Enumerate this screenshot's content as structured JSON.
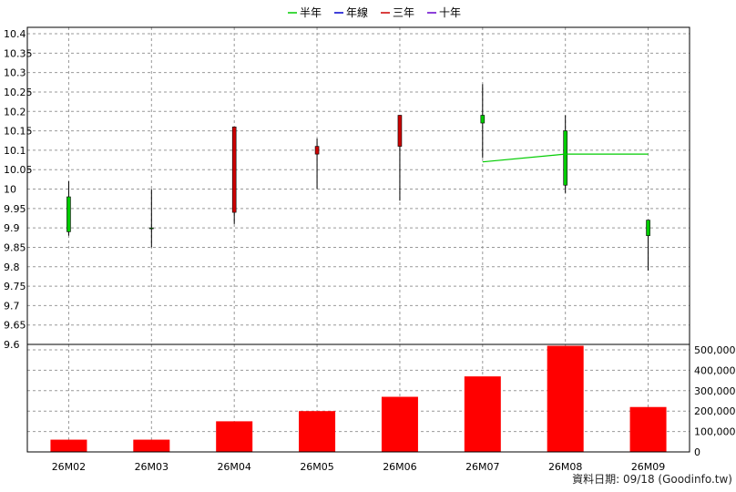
{
  "chart_data": [
    {
      "type": "candlestick",
      "legend": [
        {
          "label": "半年",
          "color": "#00cc00"
        },
        {
          "label": "年線",
          "color": "#0000cc"
        },
        {
          "label": "三年",
          "color": "#cc0000"
        },
        {
          "label": "十年",
          "color": "#6600cc"
        }
      ],
      "categories": [
        "26M02",
        "26M03",
        "26M04",
        "26M05",
        "26M06",
        "26M07",
        "26M08",
        "26M09"
      ],
      "candles": [
        {
          "open": 9.89,
          "high": 10.02,
          "low": 9.88,
          "close": 9.98
        },
        {
          "open": 9.9,
          "high": 10.0,
          "low": 9.85,
          "close": 9.9
        },
        {
          "open": 10.16,
          "high": 10.16,
          "low": 9.91,
          "close": 9.94
        },
        {
          "open": 10.11,
          "high": 10.13,
          "low": 10.0,
          "close": 10.09
        },
        {
          "open": 10.19,
          "high": 10.19,
          "low": 9.97,
          "close": 10.11
        },
        {
          "open": 10.17,
          "high": 10.27,
          "low": 10.08,
          "close": 10.19
        },
        {
          "open": 10.01,
          "high": 10.19,
          "low": 9.99,
          "close": 10.15
        },
        {
          "open": 9.88,
          "high": 9.92,
          "low": 9.79,
          "close": 9.92
        }
      ],
      "up_color": "#00cc00",
      "down_color": "#cc0000",
      "half_year_line": [
        null,
        null,
        null,
        null,
        null,
        10.07,
        10.09,
        10.09
      ],
      "y_ticks": [
        "10.4",
        "10.35",
        "10.3",
        "10.25",
        "10.2",
        "10.15",
        "10.1",
        "10.05",
        "10",
        "9.95",
        "9.9",
        "9.85",
        "9.8",
        "9.75",
        "9.7",
        "9.65",
        "9.6"
      ],
      "ylim": [
        9.6,
        10.4
      ],
      "grid": true
    },
    {
      "type": "bar",
      "categories": [
        "26M02",
        "26M03",
        "26M04",
        "26M05",
        "26M06",
        "26M07",
        "26M08",
        "26M09"
      ],
      "values": [
        60000,
        60000,
        150000,
        200000,
        270000,
        370000,
        520000,
        220000
      ],
      "color": "#ff0000",
      "y_ticks": [
        "500,000",
        "400,000",
        "300,000",
        "200,000",
        "100,000",
        "0"
      ],
      "ylim": [
        0,
        500000
      ],
      "grid": true
    }
  ],
  "footer": "資料日期: 09/18  (Goodinfo.tw)"
}
